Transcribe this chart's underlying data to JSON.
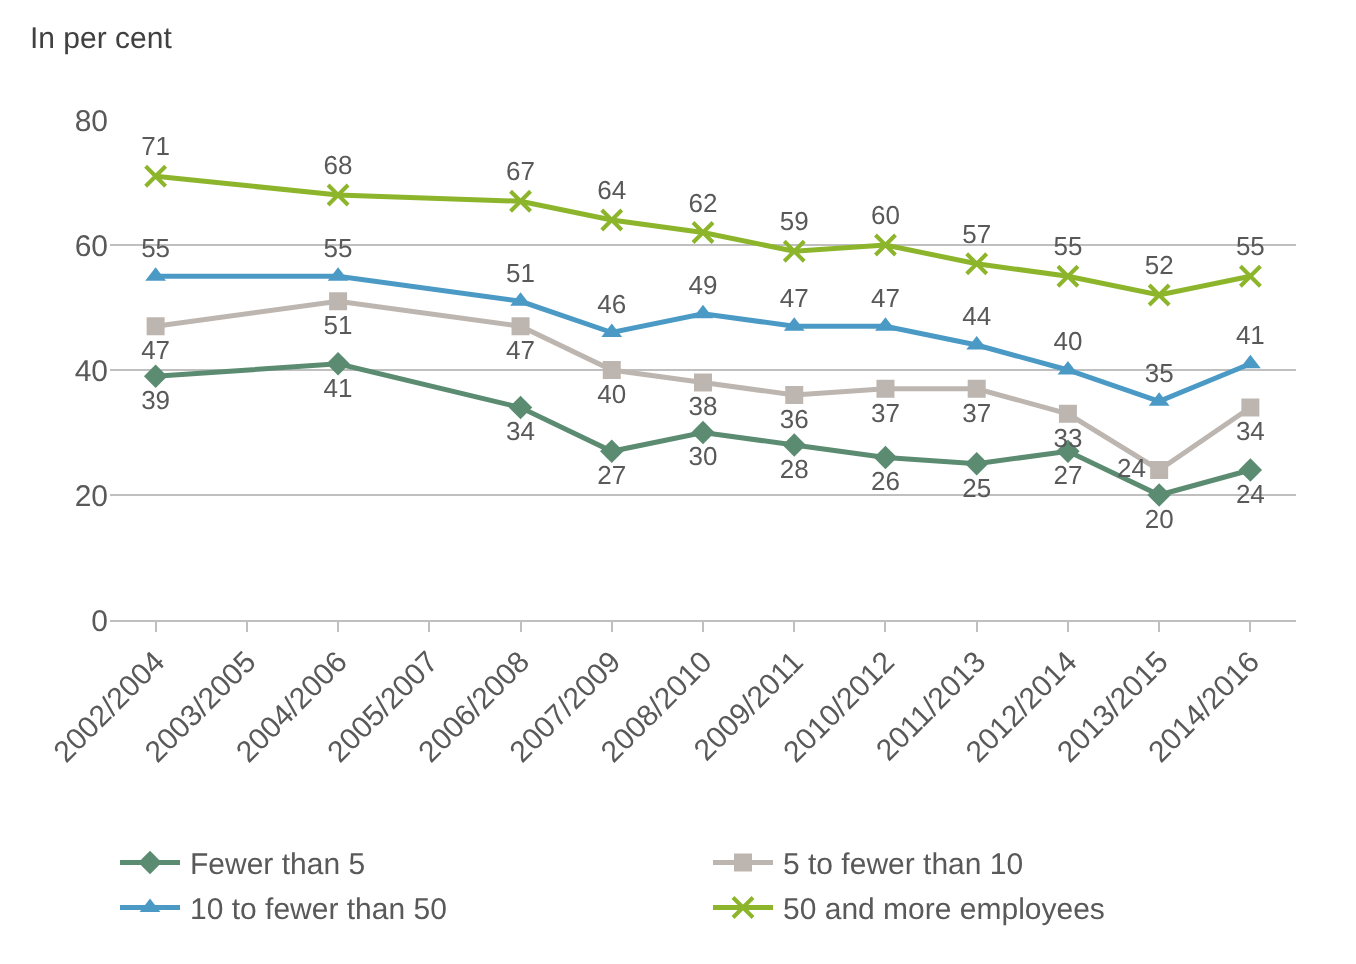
{
  "chart_data": {
    "type": "line",
    "ylabel": "In per cent",
    "categories": [
      "2002/2004",
      "2003/2005",
      "2004/2006",
      "2005/2007",
      "2006/2008",
      "2007/2009",
      "2008/2010",
      "2009/2011",
      "2010/2012",
      "2011/2013",
      "2012/2014",
      "2013/2015",
      "2014/2016"
    ],
    "series": [
      {
        "name": "Fewer than 5",
        "color": "#5b8c72",
        "marker": "diamond",
        "values": [
          39,
          null,
          41,
          null,
          34,
          27,
          30,
          28,
          26,
          25,
          27,
          20,
          24
        ]
      },
      {
        "name": "5 to fewer than 10",
        "color": "#bdb6b0",
        "marker": "square",
        "values": [
          47,
          null,
          51,
          null,
          47,
          40,
          38,
          36,
          37,
          37,
          33,
          24,
          34
        ]
      },
      {
        "name": "10 to fewer than 50",
        "color": "#4b9ac6",
        "marker": "triangle",
        "values": [
          55,
          null,
          55,
          null,
          51,
          46,
          49,
          47,
          47,
          44,
          40,
          35,
          41
        ]
      },
      {
        "name": "50 and more employees",
        "color": "#8db52b",
        "marker": "cross",
        "values": [
          71,
          null,
          68,
          null,
          67,
          64,
          62,
          59,
          60,
          57,
          55,
          52,
          55
        ]
      }
    ],
    "ylim": [
      0,
      80
    ],
    "yticks": [
      0,
      20,
      40,
      60,
      80
    ],
    "grid": "y",
    "legend": "bottom",
    "data_labels": true
  }
}
